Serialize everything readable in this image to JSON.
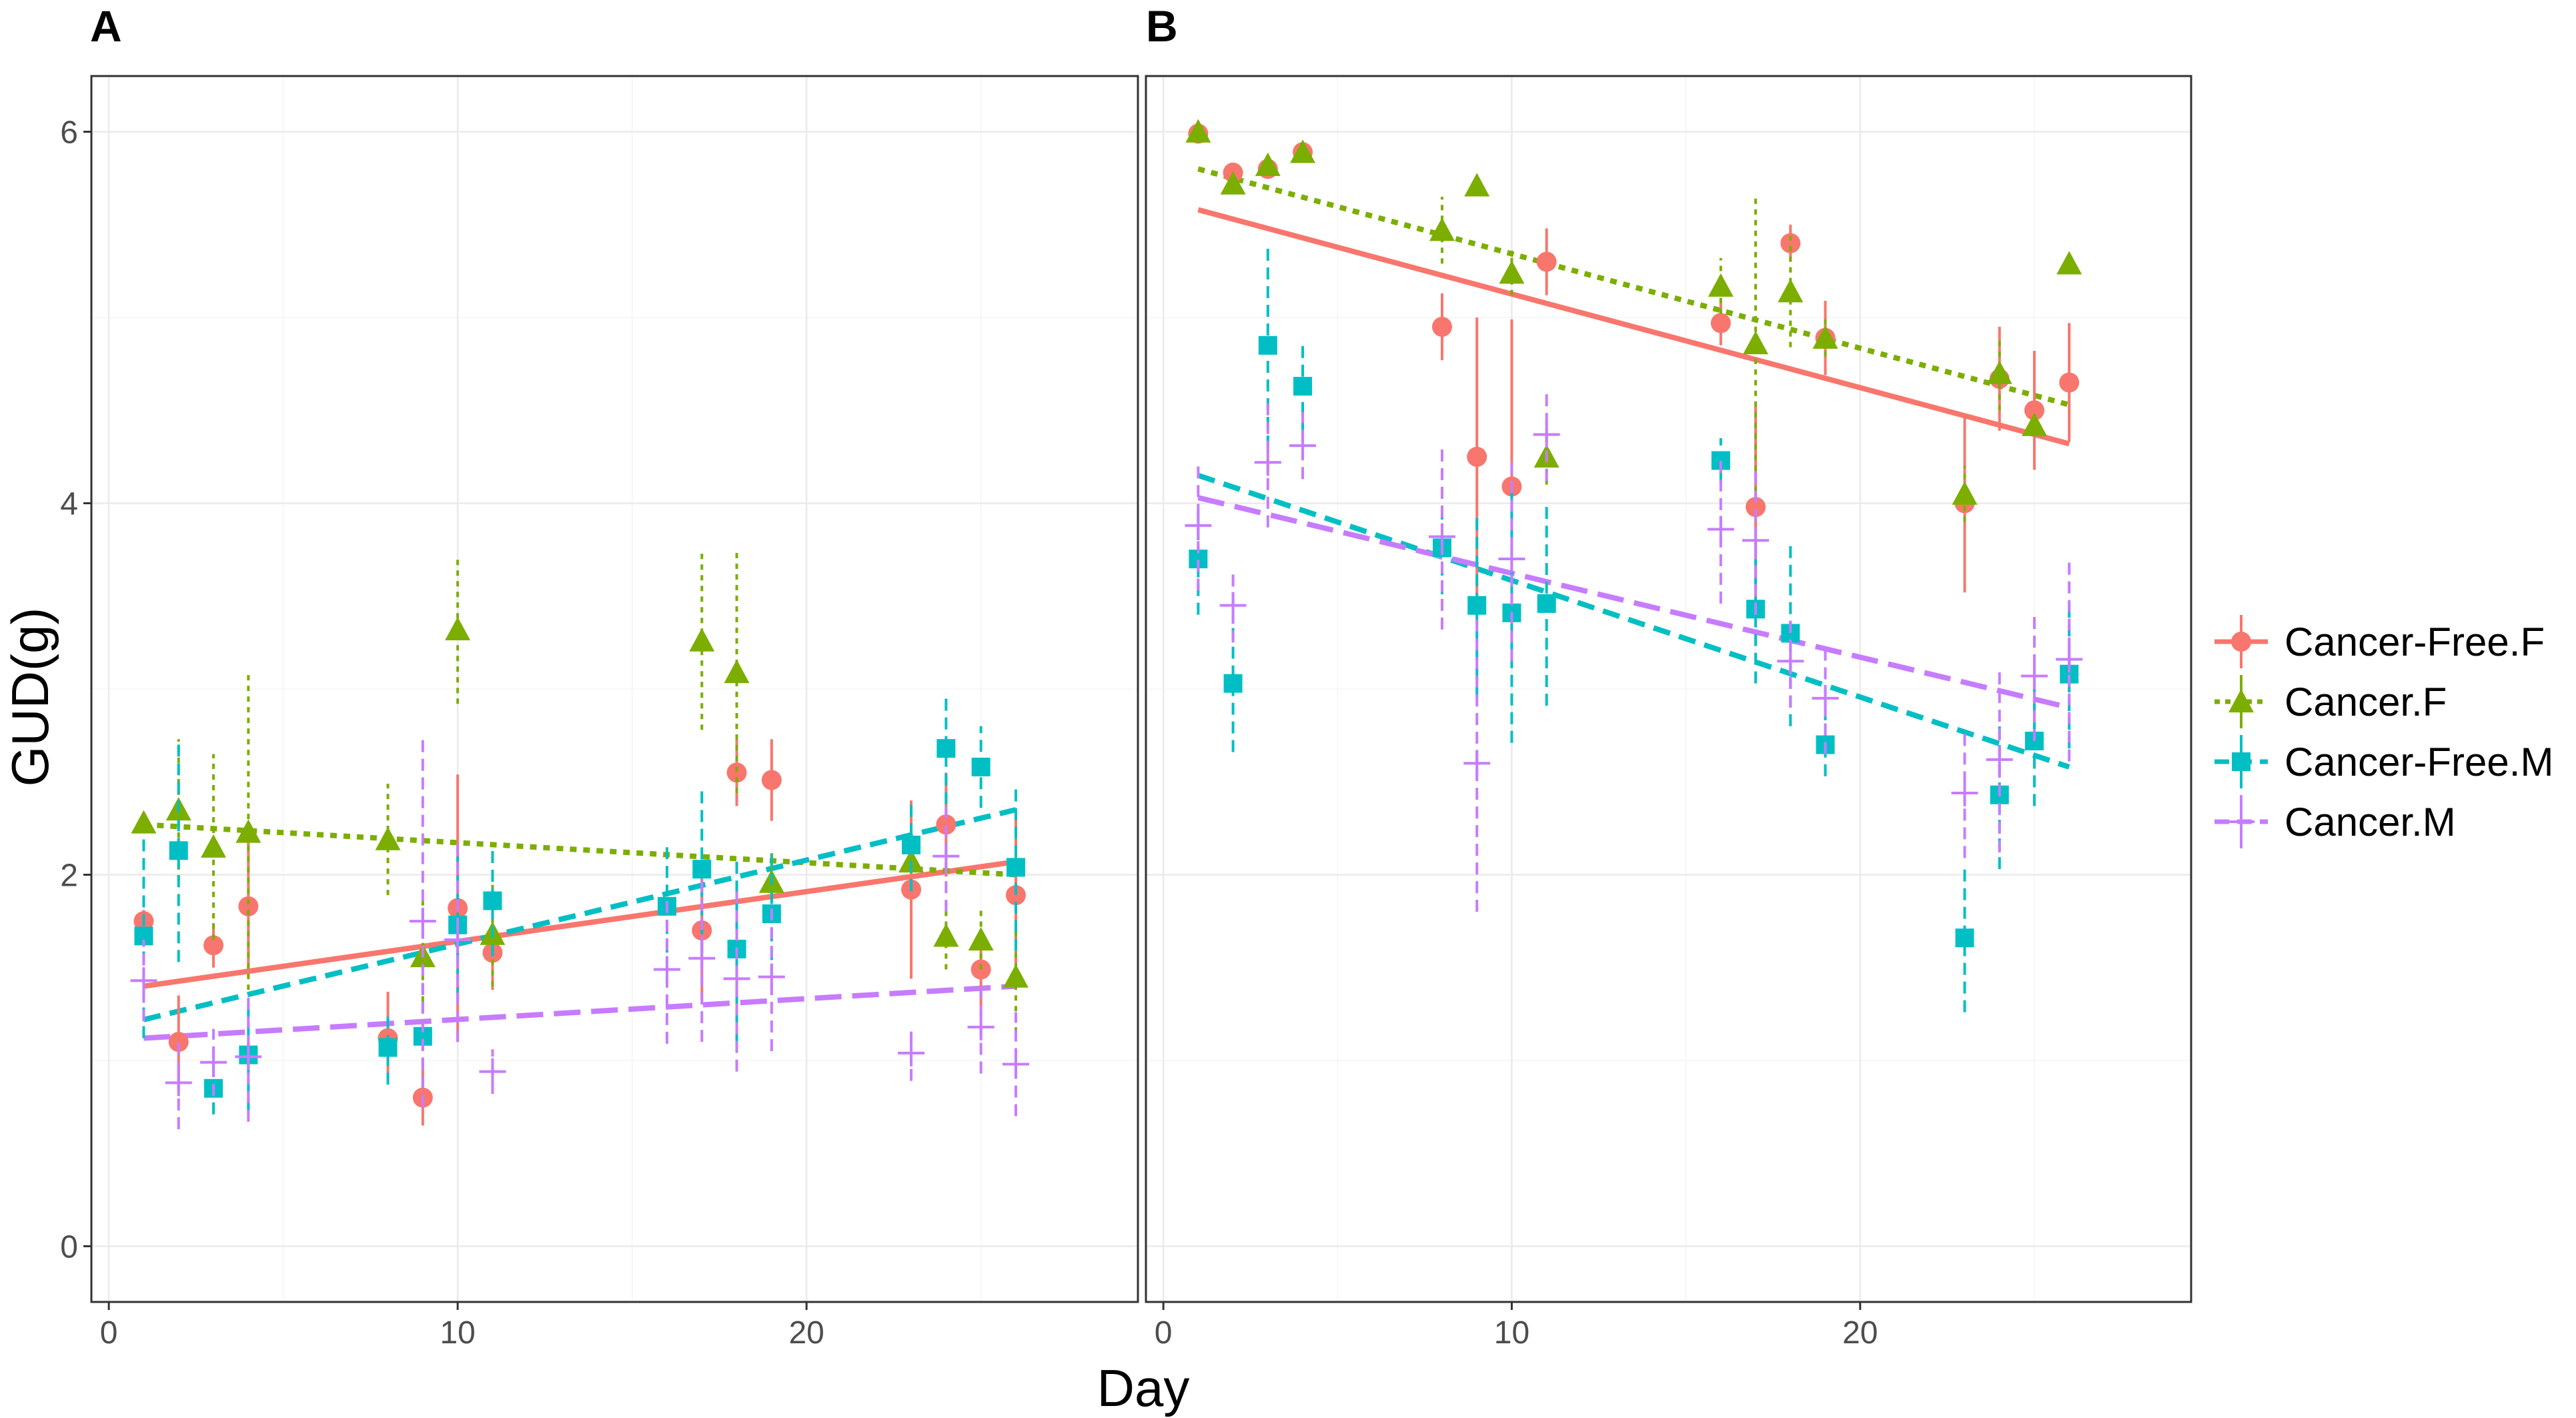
{
  "chart_data": {
    "type": "scatter",
    "xlabel": "Day",
    "ylabel": "GUD(g)",
    "xlim": [
      -0.5,
      29.5
    ],
    "ylim": [
      -0.3,
      6.3
    ],
    "x_ticks": [
      0,
      10,
      20
    ],
    "y_ticks": [
      0,
      2,
      4,
      6
    ],
    "grid": true,
    "legend_position": "right",
    "series": [
      {
        "name": "Cancer-Free.F",
        "color": "#F8766D",
        "marker": "circle",
        "line": "solid"
      },
      {
        "name": "Cancer.F",
        "color": "#7CAE00",
        "marker": "triangle",
        "line": "dotted"
      },
      {
        "name": "Cancer-Free.M",
        "color": "#00BFC4",
        "marker": "square",
        "line": "dashed"
      },
      {
        "name": "Cancer.M",
        "color": "#C77CFF",
        "marker": "plus",
        "line": "longdash"
      }
    ],
    "panels": [
      {
        "label": "A",
        "data": {
          "Cancer-Free.F": {
            "x": [
              1,
              2,
              3,
              4,
              8,
              9,
              10,
              11,
              17,
              18,
              19,
              23,
              24,
              25,
              26
            ],
            "y": [
              1.75,
              1.1,
              1.62,
              1.83,
              1.12,
              0.8,
              1.82,
              1.58,
              1.7,
              2.55,
              2.51,
              1.92,
              2.27,
              1.49,
              1.89
            ],
            "err": [
              0.06,
              0.25,
              0.12,
              0.38,
              0.25,
              0.15,
              0.72,
              0.2,
              0.38,
              0.18,
              0.22,
              0.48,
              0.28,
              0.2,
              0.45
            ],
            "fit": [
              [
                1,
                1.4
              ],
              [
                26,
                2.07
              ]
            ]
          },
          "Cancer.F": {
            "x": [
              1,
              2,
              3,
              4,
              8,
              9,
              10,
              11,
              17,
              18,
              19,
              23,
              24,
              25,
              26
            ],
            "y": [
              2.28,
              2.35,
              2.15,
              2.23,
              2.19,
              1.56,
              3.32,
              1.68,
              3.26,
              3.09,
              1.96,
              2.07,
              1.67,
              1.65,
              1.45
            ],
            "err": [
              0.05,
              0.38,
              0.5,
              0.85,
              0.3,
              0.3,
              0.4,
              0.28,
              0.48,
              0.65,
              0.16,
              0.12,
              0.18,
              0.16,
              0.3
            ],
            "fit": [
              [
                1,
                2.27
              ],
              [
                26,
                2.0
              ]
            ]
          },
          "Cancer-Free.M": {
            "x": [
              1,
              2,
              3,
              4,
              8,
              9,
              10,
              11,
              16,
              17,
              18,
              19,
              23,
              24,
              25,
              26
            ],
            "y": [
              1.67,
              2.13,
              0.85,
              1.03,
              1.07,
              1.13,
              1.73,
              1.86,
              1.83,
              2.03,
              1.6,
              1.79,
              2.16,
              2.68,
              2.58,
              2.04
            ],
            "err": [
              0.55,
              0.6,
              0.14,
              0.3,
              0.2,
              0.28,
              0.4,
              0.3,
              0.35,
              0.45,
              0.5,
              0.35,
              0.25,
              0.3,
              0.22,
              0.45
            ],
            "fit": [
              [
                1,
                1.22
              ],
              [
                26,
                2.35
              ]
            ]
          },
          "Cancer.M": {
            "x": [
              1,
              2,
              3,
              4,
              9,
              10,
              11,
              16,
              17,
              18,
              19,
              23,
              24,
              25,
              26
            ],
            "y": [
              1.43,
              0.88,
              0.99,
              1.02,
              1.75,
              1.65,
              0.94,
              1.49,
              1.55,
              1.44,
              1.45,
              1.04,
              2.1,
              1.18,
              0.98
            ],
            "err": [
              0.22,
              0.25,
              0.18,
              0.35,
              1.0,
              0.55,
              0.12,
              0.4,
              0.45,
              0.5,
              0.4,
              0.15,
              0.3,
              0.25,
              0.28
            ],
            "fit": [
              [
                1,
                1.12
              ],
              [
                26,
                1.4
              ]
            ]
          }
        }
      },
      {
        "label": "B",
        "data": {
          "Cancer-Free.F": {
            "x": [
              1,
              2,
              3,
              4,
              8,
              9,
              10,
              11,
              16,
              17,
              18,
              19,
              23,
              24,
              25,
              26
            ],
            "y": [
              5.99,
              5.78,
              5.8,
              5.89,
              4.95,
              4.25,
              4.09,
              5.3,
              4.97,
              3.98,
              5.4,
              4.89,
              4.0,
              4.67,
              4.5,
              4.65
            ],
            "err": [
              0.04,
              0.05,
              0.04,
              0.04,
              0.18,
              0.75,
              0.9,
              0.18,
              0.12,
              0.55,
              0.1,
              0.2,
              0.48,
              0.28,
              0.32,
              0.32
            ],
            "fit": [
              [
                1,
                5.58
              ],
              [
                26,
                4.32
              ]
            ]
          },
          "Cancer.F": {
            "x": [
              1,
              2,
              3,
              4,
              8,
              9,
              10,
              11,
              16,
              17,
              18,
              19,
              23,
              24,
              25,
              26
            ],
            "y": [
              6.0,
              5.72,
              5.82,
              5.89,
              5.47,
              5.71,
              5.24,
              4.25,
              5.17,
              4.86,
              5.14,
              4.89,
              4.05,
              4.7,
              4.42,
              5.29
            ],
            "err": [
              0.03,
              0.05,
              0.03,
              0.03,
              0.18,
              0.05,
              0.12,
              0.15,
              0.15,
              0.8,
              0.3,
              0.1,
              0.15,
              0.2,
              0.06,
              0.05
            ],
            "fit": [
              [
                1,
                5.8
              ],
              [
                26,
                4.53
              ]
            ]
          },
          "Cancer-Free.M": {
            "x": [
              1,
              2,
              3,
              4,
              8,
              9,
              10,
              11,
              16,
              17,
              18,
              19,
              23,
              24,
              25,
              26
            ],
            "y": [
              3.7,
              3.03,
              4.85,
              4.63,
              3.76,
              3.45,
              3.41,
              3.46,
              4.23,
              3.43,
              3.3,
              2.7,
              1.66,
              2.43,
              2.72,
              3.08
            ],
            "err": [
              0.3,
              0.37,
              0.55,
              0.25,
              0.25,
              0.5,
              0.7,
              0.55,
              0.12,
              0.4,
              0.5,
              0.17,
              0.4,
              0.4,
              0.35,
              0.4
            ],
            "fit": [
              [
                1,
                4.15
              ],
              [
                26,
                2.58
              ]
            ]
          },
          "Cancer.M": {
            "x": [
              1,
              2,
              3,
              4,
              8,
              9,
              10,
              11,
              16,
              17,
              18,
              19,
              23,
              24,
              25,
              26
            ],
            "y": [
              3.88,
              3.45,
              4.22,
              4.31,
              3.82,
              2.6,
              3.7,
              4.37,
              3.86,
              3.8,
              3.15,
              2.95,
              2.44,
              2.62,
              3.07,
              3.16
            ],
            "err": [
              0.35,
              0.2,
              0.35,
              0.18,
              0.5,
              0.8,
              0.55,
              0.25,
              0.4,
              0.4,
              0.25,
              0.3,
              0.35,
              0.5,
              0.35,
              0.55
            ],
            "fit": [
              [
                1,
                4.03
              ],
              [
                26,
                2.9
              ]
            ]
          }
        }
      }
    ]
  }
}
